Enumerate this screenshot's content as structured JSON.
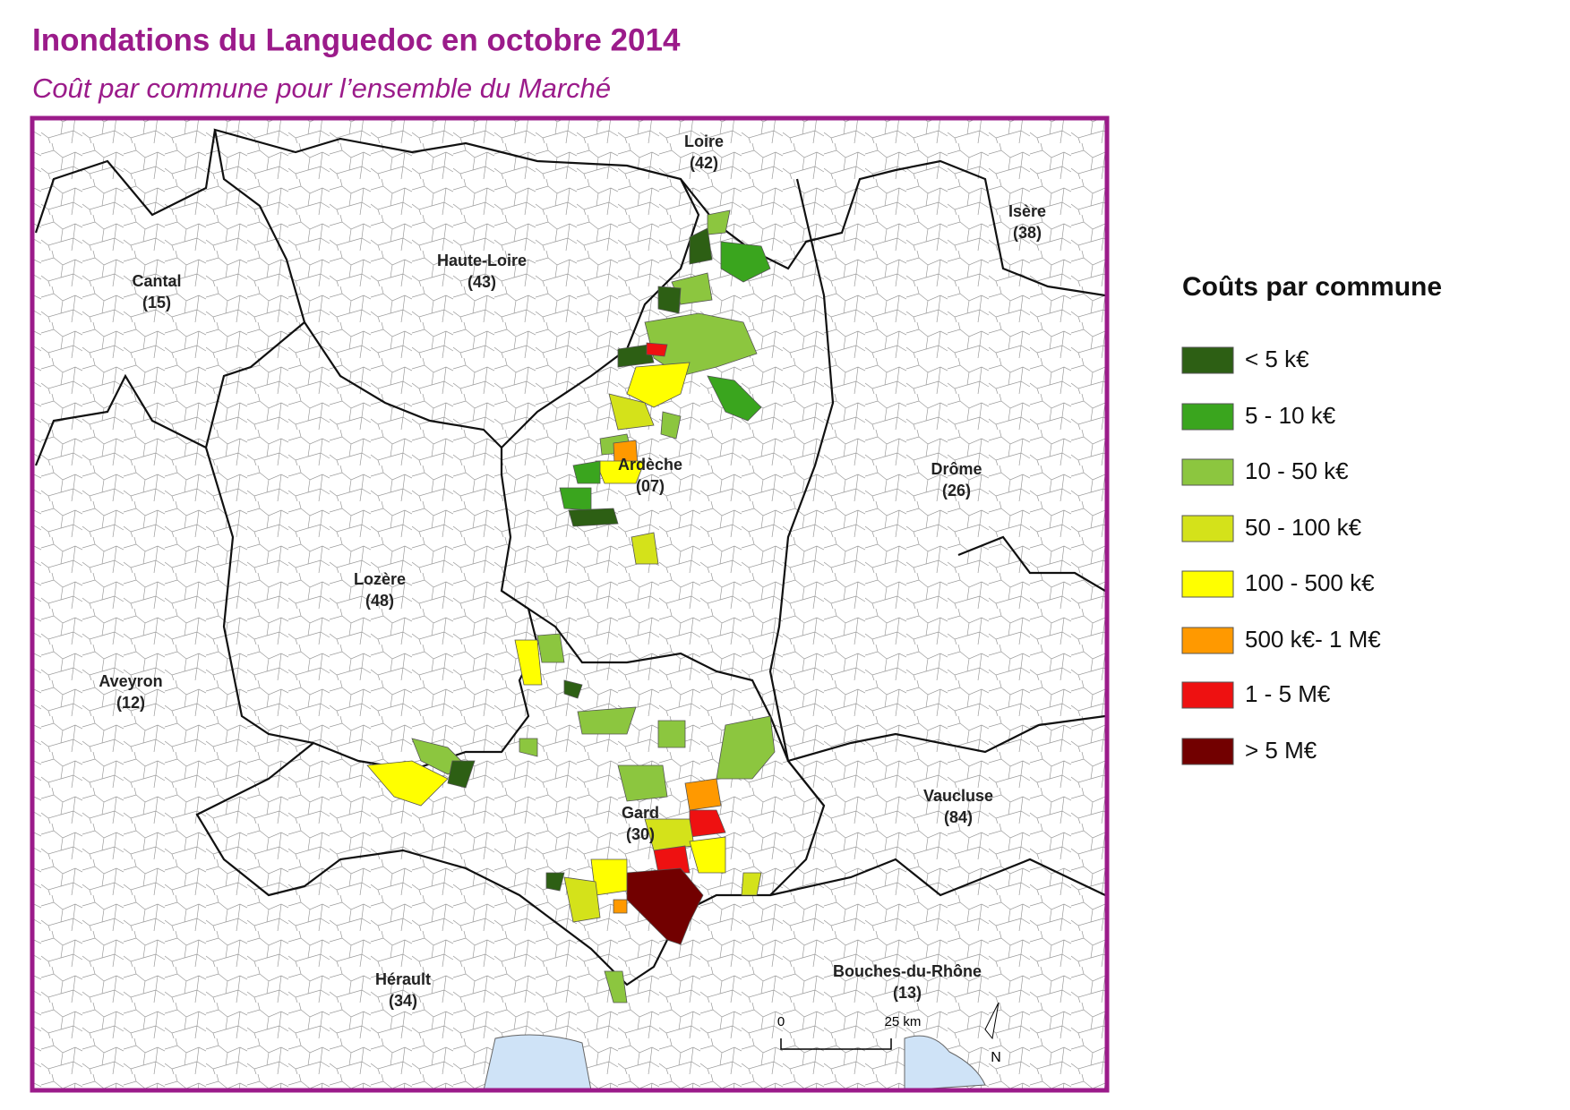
{
  "header": {
    "title": "Inondations du Languedoc en octobre 2014",
    "subtitle": "Coût par commune pour l’ensemble du Marché"
  },
  "map": {
    "departments": [
      {
        "name": "Loire",
        "code": "(42)"
      },
      {
        "name": "Isère",
        "code": "(38)"
      },
      {
        "name": "Haute-Loire",
        "code": "(43)"
      },
      {
        "name": "Cantal",
        "code": "(15)"
      },
      {
        "name": "Ardèche",
        "code": "(07)"
      },
      {
        "name": "Drôme",
        "code": "(26)"
      },
      {
        "name": "Lozère",
        "code": "(48)"
      },
      {
        "name": "Aveyron",
        "code": "(12)"
      },
      {
        "name": "Gard",
        "code": "(30)"
      },
      {
        "name": "Vaucluse",
        "code": "(84)"
      },
      {
        "name": "Hérault",
        "code": "(34)"
      },
      {
        "name": "Bouches-du-Rhône",
        "code": "(13)"
      }
    ],
    "scale_bar": {
      "start": "0",
      "end": "25 km"
    },
    "north": "N"
  },
  "legend": {
    "title": "Coûts par commune",
    "items": [
      {
        "label": "< 5 k€",
        "color": "#2d5f14"
      },
      {
        "label": "5 - 10 k€",
        "color": "#3aa51e"
      },
      {
        "label": "10 - 50 k€",
        "color": "#8cc63f"
      },
      {
        "label": "50 - 100 k€",
        "color": "#d4e21a"
      },
      {
        "label": "100 - 500 k€",
        "color": "#ffff00"
      },
      {
        "label": "500 k€- 1 M€",
        "color": "#ff9900"
      },
      {
        "label": "1 - 5 M€",
        "color": "#ee1111"
      },
      {
        "label": "> 5 M€",
        "color": "#720000"
      }
    ]
  }
}
